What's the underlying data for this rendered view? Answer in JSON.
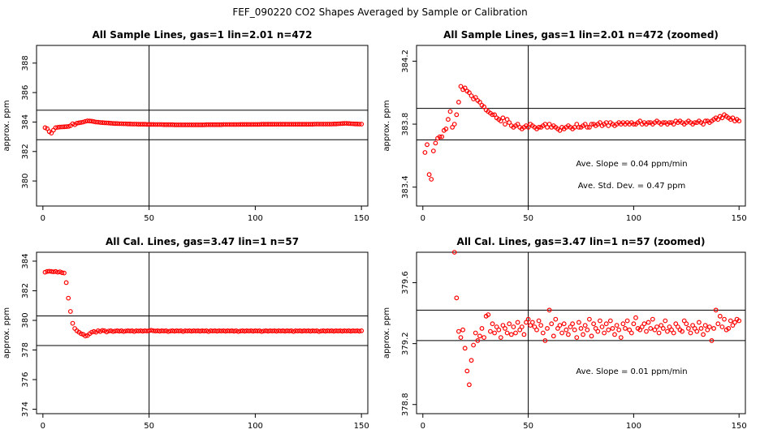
{
  "suptitle": "FEF_090220  CO2 Shapes Averaged by Sample or Calibration",
  "chart_data": [
    {
      "type": "scatter",
      "title": "All Sample Lines, gas=1 lin=2.01 n=472",
      "xlabel": "",
      "ylabel": "approx. ppm",
      "xlim": [
        -3,
        153
      ],
      "ylim": [
        378.3,
        389.2
      ],
      "xticks": [
        0,
        50,
        100,
        150
      ],
      "yticks": [
        380,
        382,
        384,
        386,
        388
      ],
      "hlines": [
        382.8,
        384.8
      ],
      "vline": 50,
      "color": "#ff0000",
      "annotations": [],
      "x": [
        1,
        2,
        3,
        4,
        5,
        6,
        7,
        8,
        9,
        10,
        11,
        12,
        13,
        14,
        15,
        16,
        17,
        18,
        19,
        20,
        21,
        22,
        23,
        24,
        25,
        26,
        27,
        28,
        29,
        30,
        31,
        32,
        33,
        34,
        35,
        36,
        37,
        38,
        39,
        40,
        41,
        42,
        43,
        44,
        45,
        46,
        47,
        48,
        49,
        50,
        51,
        52,
        53,
        54,
        55,
        56,
        57,
        58,
        59,
        60,
        61,
        62,
        63,
        64,
        65,
        66,
        67,
        68,
        69,
        70,
        71,
        72,
        73,
        74,
        75,
        76,
        77,
        78,
        79,
        80,
        81,
        82,
        83,
        84,
        85,
        86,
        87,
        88,
        89,
        90,
        91,
        92,
        93,
        94,
        95,
        96,
        97,
        98,
        99,
        100,
        101,
        102,
        103,
        104,
        105,
        106,
        107,
        108,
        109,
        110,
        111,
        112,
        113,
        114,
        115,
        116,
        117,
        118,
        119,
        120,
        121,
        122,
        123,
        124,
        125,
        126,
        127,
        128,
        129,
        130,
        131,
        132,
        133,
        134,
        135,
        136,
        137,
        138,
        139,
        140,
        141,
        142,
        143,
        144,
        145,
        146,
        147,
        148,
        149,
        150
      ],
      "y": [
        383.62,
        383.55,
        383.35,
        383.25,
        383.45,
        383.62,
        383.64,
        383.66,
        383.67,
        383.68,
        383.69,
        383.7,
        383.75,
        383.88,
        383.82,
        383.92,
        383.95,
        383.97,
        384.0,
        384.05,
        384.08,
        384.07,
        384.06,
        384.03,
        384.0,
        383.99,
        383.97,
        383.96,
        383.95,
        383.94,
        383.93,
        383.92,
        383.91,
        383.9,
        383.9,
        383.89,
        383.89,
        383.88,
        383.88,
        383.87,
        383.87,
        383.86,
        383.86,
        383.86,
        383.85,
        383.85,
        383.85,
        383.85,
        383.84,
        383.84,
        383.84,
        383.84,
        383.83,
        383.83,
        383.83,
        383.83,
        383.82,
        383.82,
        383.82,
        383.82,
        383.82,
        383.81,
        383.81,
        383.81,
        383.81,
        383.81,
        383.81,
        383.81,
        383.81,
        383.81,
        383.81,
        383.81,
        383.81,
        383.81,
        383.81,
        383.81,
        383.82,
        383.82,
        383.82,
        383.82,
        383.82,
        383.82,
        383.82,
        383.82,
        383.83,
        383.83,
        383.83,
        383.83,
        383.83,
        383.83,
        383.83,
        383.83,
        383.84,
        383.84,
        383.84,
        383.84,
        383.84,
        383.84,
        383.84,
        383.84,
        383.84,
        383.84,
        383.85,
        383.85,
        383.85,
        383.85,
        383.85,
        383.85,
        383.85,
        383.85,
        383.85,
        383.85,
        383.85,
        383.85,
        383.85,
        383.85,
        383.85,
        383.85,
        383.85,
        383.85,
        383.85,
        383.85,
        383.85,
        383.85,
        383.85,
        383.85,
        383.85,
        383.86,
        383.86,
        383.86,
        383.86,
        383.86,
        383.86,
        383.86,
        383.86,
        383.86,
        383.87,
        383.87,
        383.88,
        383.89,
        383.9,
        383.91,
        383.91,
        383.9,
        383.89,
        383.88,
        383.87,
        383.87,
        383.86,
        383.86
      ]
    },
    {
      "type": "scatter",
      "title": "All Sample Lines, gas=1 lin=2.01 n=472 (zoomed)",
      "xlabel": "",
      "ylabel": "approx. ppm",
      "xlim": [
        -3,
        153
      ],
      "ylim": [
        383.28,
        384.3
      ],
      "xticks": [
        0,
        50,
        100,
        150
      ],
      "yticks": [
        383.4,
        383.8,
        384.2
      ],
      "hlines": [
        383.7,
        383.9
      ],
      "vline": 50,
      "color": "#ff0000",
      "annotations": [
        "Ave. Slope =  0.04  ppm/min",
        "Ave. Std. Dev. = 0.47  ppm"
      ],
      "x": [
        1,
        2,
        3,
        4,
        5,
        6,
        7,
        8,
        9,
        10,
        11,
        12,
        13,
        14,
        15,
        16,
        17,
        18,
        19,
        20,
        21,
        22,
        23,
        24,
        25,
        26,
        27,
        28,
        29,
        30,
        31,
        32,
        33,
        34,
        35,
        36,
        37,
        38,
        39,
        40,
        41,
        42,
        43,
        44,
        45,
        46,
        47,
        48,
        49,
        50,
        51,
        52,
        53,
        54,
        55,
        56,
        57,
        58,
        59,
        60,
        61,
        62,
        63,
        64,
        65,
        66,
        67,
        68,
        69,
        70,
        71,
        72,
        73,
        74,
        75,
        76,
        77,
        78,
        79,
        80,
        81,
        82,
        83,
        84,
        85,
        86,
        87,
        88,
        89,
        90,
        91,
        92,
        93,
        94,
        95,
        96,
        97,
        98,
        99,
        100,
        101,
        102,
        103,
        104,
        105,
        106,
        107,
        108,
        109,
        110,
        111,
        112,
        113,
        114,
        115,
        116,
        117,
        118,
        119,
        120,
        121,
        122,
        123,
        124,
        125,
        126,
        127,
        128,
        129,
        130,
        131,
        132,
        133,
        134,
        135,
        136,
        137,
        138,
        139,
        140,
        141,
        142,
        143,
        144,
        145,
        146,
        147,
        148,
        149,
        150
      ],
      "y": [
        383.62,
        383.67,
        383.48,
        383.45,
        383.63,
        383.68,
        383.71,
        383.72,
        383.72,
        383.76,
        383.77,
        383.83,
        383.88,
        383.78,
        383.8,
        383.86,
        383.94,
        384.04,
        384.02,
        384.03,
        384.01,
        384.0,
        383.98,
        383.96,
        383.97,
        383.95,
        383.94,
        383.92,
        383.91,
        383.89,
        383.88,
        383.87,
        383.86,
        383.86,
        383.84,
        383.83,
        383.82,
        383.84,
        383.8,
        383.83,
        383.81,
        383.79,
        383.78,
        383.79,
        383.8,
        383.78,
        383.77,
        383.78,
        383.79,
        383.78,
        383.8,
        383.79,
        383.78,
        383.77,
        383.78,
        383.78,
        383.79,
        383.8,
        383.78,
        383.8,
        383.78,
        383.79,
        383.78,
        383.77,
        383.76,
        383.78,
        383.77,
        383.78,
        383.79,
        383.78,
        383.77,
        383.78,
        383.8,
        383.78,
        383.78,
        383.79,
        383.8,
        383.78,
        383.78,
        383.8,
        383.8,
        383.79,
        383.8,
        383.81,
        383.79,
        383.8,
        383.81,
        383.79,
        383.81,
        383.8,
        383.79,
        383.8,
        383.81,
        383.8,
        383.81,
        383.8,
        383.81,
        383.8,
        383.81,
        383.8,
        383.8,
        383.81,
        383.82,
        383.8,
        383.81,
        383.8,
        383.81,
        383.81,
        383.8,
        383.81,
        383.82,
        383.81,
        383.8,
        383.81,
        383.81,
        383.8,
        383.81,
        383.81,
        383.8,
        383.82,
        383.81,
        383.82,
        383.81,
        383.8,
        383.81,
        383.82,
        383.81,
        383.8,
        383.81,
        383.81,
        383.82,
        383.81,
        383.8,
        383.82,
        383.82,
        383.81,
        383.82,
        383.83,
        383.84,
        383.83,
        383.85,
        383.84,
        383.86,
        383.85,
        383.84,
        383.83,
        383.84,
        383.82,
        383.83,
        383.82
      ]
    },
    {
      "type": "scatter",
      "title": "All Cal. Lines, gas=3.47 lin=1 n=57",
      "xlabel": "",
      "ylabel": "approx. ppm",
      "xlim": [
        -3,
        153
      ],
      "ylim": [
        373.7,
        384.6
      ],
      "xticks": [
        0,
        50,
        100,
        150
      ],
      "yticks": [
        374,
        376,
        378,
        380,
        382,
        384
      ],
      "hlines": [
        378.3,
        380.3
      ],
      "vline": 50,
      "color": "#ff0000",
      "annotations": [],
      "x": [
        1,
        2,
        3,
        4,
        5,
        6,
        7,
        8,
        9,
        10,
        11,
        12,
        13,
        14,
        15,
        16,
        17,
        18,
        19,
        20,
        21,
        22,
        23,
        24,
        25,
        26,
        27,
        28,
        29,
        30,
        31,
        32,
        33,
        34,
        35,
        36,
        37,
        38,
        39,
        40,
        41,
        42,
        43,
        44,
        45,
        46,
        47,
        48,
        49,
        50,
        51,
        52,
        53,
        54,
        55,
        56,
        57,
        58,
        59,
        60,
        61,
        62,
        63,
        64,
        65,
        66,
        67,
        68,
        69,
        70,
        71,
        72,
        73,
        74,
        75,
        76,
        77,
        78,
        79,
        80,
        81,
        82,
        83,
        84,
        85,
        86,
        87,
        88,
        89,
        90,
        91,
        92,
        93,
        94,
        95,
        96,
        97,
        98,
        99,
        100,
        101,
        102,
        103,
        104,
        105,
        106,
        107,
        108,
        109,
        110,
        111,
        112,
        113,
        114,
        115,
        116,
        117,
        118,
        119,
        120,
        121,
        122,
        123,
        124,
        125,
        126,
        127,
        128,
        129,
        130,
        131,
        132,
        133,
        134,
        135,
        136,
        137,
        138,
        139,
        140,
        141,
        142,
        143,
        144,
        145,
        146,
        147,
        148,
        149,
        150
      ],
      "y": [
        383.25,
        383.3,
        383.32,
        383.3,
        383.28,
        383.3,
        383.25,
        383.28,
        383.22,
        383.2,
        382.55,
        381.5,
        380.6,
        379.8,
        379.45,
        379.3,
        379.2,
        379.1,
        379.05,
        378.95,
        378.98,
        379.1,
        379.2,
        379.25,
        379.2,
        379.3,
        379.25,
        379.32,
        379.3,
        379.22,
        379.28,
        379.3,
        379.25,
        379.28,
        379.3,
        379.27,
        379.3,
        379.25,
        379.28,
        379.3,
        379.28,
        379.3,
        379.25,
        379.3,
        379.28,
        379.3,
        379.27,
        379.3,
        379.28,
        379.3,
        379.33,
        379.3,
        379.28,
        379.3,
        379.27,
        379.3,
        379.28,
        379.3,
        379.25,
        379.28,
        379.3,
        379.27,
        379.3,
        379.28,
        379.3,
        379.25,
        379.3,
        379.28,
        379.3,
        379.27,
        379.3,
        379.28,
        379.3,
        379.27,
        379.3,
        379.28,
        379.3,
        379.25,
        379.3,
        379.28,
        379.3,
        379.27,
        379.3,
        379.28,
        379.3,
        379.27,
        379.3,
        379.28,
        379.3,
        379.27,
        379.3,
        379.25,
        379.28,
        379.3,
        379.27,
        379.3,
        379.28,
        379.3,
        379.27,
        379.3,
        379.28,
        379.3,
        379.25,
        379.28,
        379.3,
        379.27,
        379.3,
        379.28,
        379.3,
        379.27,
        379.3,
        379.28,
        379.3,
        379.27,
        379.3,
        379.28,
        379.3,
        379.25,
        379.3,
        379.28,
        379.3,
        379.27,
        379.3,
        379.28,
        379.3,
        379.27,
        379.3,
        379.28,
        379.3,
        379.25,
        379.28,
        379.3,
        379.27,
        379.3,
        379.28,
        379.3,
        379.27,
        379.3,
        379.28,
        379.3,
        379.27,
        379.3,
        379.28,
        379.3,
        379.27,
        379.3,
        379.28,
        379.3,
        379.27,
        379.3
      ]
    },
    {
      "type": "scatter",
      "title": "All Cal. Lines, gas=3.47 lin=1 n=57 (zoomed)",
      "xlabel": "",
      "ylabel": "approx. ppm",
      "xlim": [
        -3,
        153
      ],
      "ylim": [
        378.74,
        379.8
      ],
      "xticks": [
        0,
        50,
        100,
        150
      ],
      "yticks": [
        378.8,
        379.2,
        379.6
      ],
      "hlines": [
        379.22,
        379.42
      ],
      "vline": 50,
      "color": "#ff0000",
      "annotations": [
        "Ave. Slope =  0.01  ppm/min"
      ],
      "x": [
        15,
        16,
        17,
        18,
        19,
        20,
        21,
        22,
        23,
        24,
        25,
        26,
        27,
        28,
        29,
        30,
        31,
        32,
        33,
        34,
        35,
        36,
        37,
        38,
        39,
        40,
        41,
        42,
        43,
        44,
        45,
        46,
        47,
        48,
        49,
        50,
        51,
        52,
        53,
        54,
        55,
        56,
        57,
        58,
        59,
        60,
        61,
        62,
        63,
        64,
        65,
        66,
        67,
        68,
        69,
        70,
        71,
        72,
        73,
        74,
        75,
        76,
        77,
        78,
        79,
        80,
        81,
        82,
        83,
        84,
        85,
        86,
        87,
        88,
        89,
        90,
        91,
        92,
        93,
        94,
        95,
        96,
        97,
        98,
        99,
        100,
        101,
        102,
        103,
        104,
        105,
        106,
        107,
        108,
        109,
        110,
        111,
        112,
        113,
        114,
        115,
        116,
        117,
        118,
        119,
        120,
        121,
        122,
        123,
        124,
        125,
        126,
        127,
        128,
        129,
        130,
        131,
        132,
        133,
        134,
        135,
        136,
        137,
        138,
        139,
        140,
        141,
        142,
        143,
        144,
        145,
        146,
        147,
        148,
        149,
        150
      ],
      "y": [
        379.8,
        379.5,
        379.28,
        379.24,
        379.29,
        379.17,
        379.02,
        378.93,
        379.09,
        379.19,
        379.27,
        379.22,
        379.25,
        379.3,
        379.24,
        379.38,
        379.39,
        379.28,
        379.33,
        379.27,
        379.31,
        379.29,
        379.24,
        379.32,
        379.3,
        379.27,
        379.33,
        379.26,
        379.31,
        379.27,
        379.34,
        379.29,
        379.31,
        379.26,
        379.34,
        379.36,
        379.32,
        379.34,
        379.31,
        379.29,
        379.35,
        379.32,
        379.27,
        379.22,
        379.3,
        379.42,
        379.33,
        379.25,
        379.36,
        379.3,
        379.32,
        379.27,
        379.33,
        379.29,
        379.26,
        379.31,
        379.33,
        379.29,
        379.24,
        379.34,
        379.3,
        379.26,
        379.32,
        379.29,
        379.36,
        379.25,
        379.33,
        379.3,
        379.28,
        379.35,
        379.31,
        379.27,
        379.33,
        379.29,
        379.35,
        379.3,
        379.26,
        379.32,
        379.29,
        379.24,
        379.33,
        379.3,
        379.35,
        379.29,
        379.27,
        379.33,
        379.37,
        379.3,
        379.29,
        379.31,
        379.33,
        379.28,
        379.34,
        379.3,
        379.36,
        379.29,
        379.31,
        379.27,
        379.32,
        379.3,
        379.35,
        379.28,
        379.31,
        379.29,
        379.27,
        379.33,
        379.31,
        379.29,
        379.28,
        379.35,
        379.33,
        379.3,
        379.27,
        379.32,
        379.3,
        379.28,
        379.34,
        379.3,
        379.26,
        379.32,
        379.29,
        379.31,
        379.22,
        379.3,
        379.42,
        379.33,
        379.38,
        379.31,
        379.36,
        379.29,
        379.3,
        379.35,
        379.32,
        379.34,
        379.36,
        379.35
      ]
    }
  ]
}
